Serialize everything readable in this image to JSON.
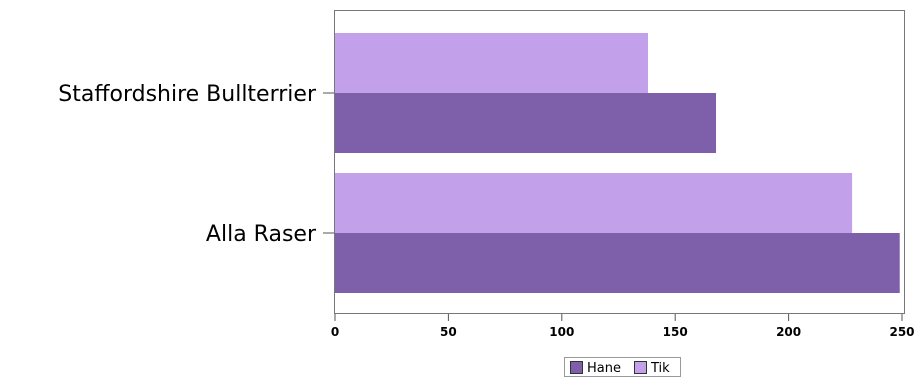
{
  "chart_data": {
    "type": "bar",
    "orientation": "horizontal",
    "categories": [
      "Staffordshire Bullterrier",
      "Alla Raser"
    ],
    "series": [
      {
        "name": "Hane",
        "values": [
          168,
          249
        ],
        "color": "#7E5FA9"
      },
      {
        "name": "Tik",
        "values": [
          138,
          228
        ],
        "color": "#C3A0EA"
      }
    ],
    "xlim": [
      0,
      250
    ],
    "xticks": [
      0,
      50,
      100,
      150,
      200,
      250
    ],
    "grid": false,
    "legend": "bottom"
  }
}
